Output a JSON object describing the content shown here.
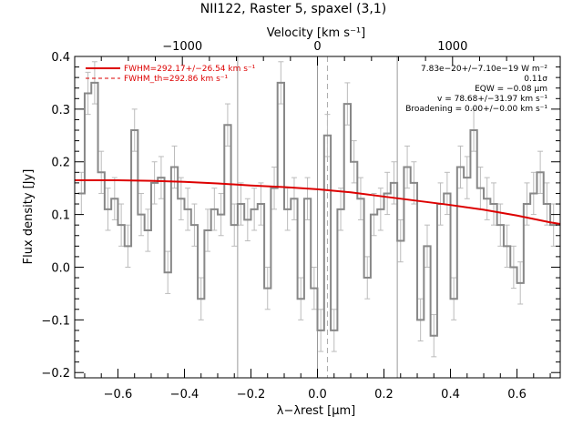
{
  "chart_data": {
    "type": "line",
    "title": "NII122, Raster 5, spaxel (3,1)",
    "xlabel": "λ−λrest [μm]",
    "ylabel": "Flux density [Jy]",
    "top_xlabel": "Velocity [km s⁻¹]",
    "xlim": [
      -0.73,
      0.73
    ],
    "ylim": [
      -0.21,
      0.4
    ],
    "top_xlim": [
      -1797,
      1797
    ],
    "grid": false,
    "x_ticks": [
      -0.6,
      -0.4,
      -0.2,
      0.0,
      0.2,
      0.4,
      0.6
    ],
    "x_tick_labels": [
      "−0.6",
      "−0.4",
      "−0.2",
      "0.0",
      "0.2",
      "0.4",
      "0.6"
    ],
    "y_ticks": [
      -0.2,
      -0.1,
      0.0,
      0.1,
      0.2,
      0.3,
      0.4
    ],
    "y_tick_labels": [
      "−0.2",
      "−0.1",
      "0.0",
      "0.1",
      "0.2",
      "0.3",
      "0.4"
    ],
    "top_ticks": [
      -1000,
      0,
      1000
    ],
    "top_tick_labels": [
      "−1000",
      "0",
      "1000"
    ],
    "legend": {
      "placement": "top-left",
      "entries": [
        {
          "label": "FWHM=292.17+/−26.54 km s⁻¹",
          "style": "solid",
          "color": "#dd0000"
        },
        {
          "label": "FWHM_th=292.86 km s⁻¹",
          "style": "dashed",
          "color": "#dd0000"
        }
      ]
    },
    "annotations": [
      "7.83e−20+/−7.10e−19 W m⁻²",
      "0.11σ",
      "EQW = −0.08 μm",
      "v = 78.68+/−31.97 km s⁻¹",
      "Broadening = 0.00+/−0.00 km s⁻¹"
    ],
    "vlines_solid": [
      -0.24,
      0.0,
      0.24
    ],
    "vlines_dashed": [
      0.03
    ],
    "series": [
      {
        "name": "data",
        "style": "step",
        "color": "#888888",
        "x": [
          -0.71,
          -0.69,
          -0.67,
          -0.65,
          -0.63,
          -0.61,
          -0.59,
          -0.57,
          -0.55,
          -0.53,
          -0.51,
          -0.49,
          -0.47,
          -0.45,
          -0.43,
          -0.41,
          -0.39,
          -0.37,
          -0.35,
          -0.33,
          -0.31,
          -0.29,
          -0.27,
          -0.25,
          -0.23,
          -0.21,
          -0.19,
          -0.17,
          -0.15,
          -0.13,
          -0.11,
          -0.09,
          -0.07,
          -0.05,
          -0.03,
          -0.01,
          0.01,
          0.03,
          0.05,
          0.07,
          0.09,
          0.11,
          0.13,
          0.15,
          0.17,
          0.19,
          0.21,
          0.23,
          0.25,
          0.27,
          0.29,
          0.31,
          0.33,
          0.35,
          0.37,
          0.39,
          0.41,
          0.43,
          0.45,
          0.47,
          0.49,
          0.51,
          0.53,
          0.55,
          0.57,
          0.59,
          0.61,
          0.63,
          0.65,
          0.67,
          0.69,
          0.71
        ],
        "y": [
          0.14,
          0.33,
          0.35,
          0.18,
          0.11,
          0.13,
          0.08,
          0.04,
          0.26,
          0.1,
          0.07,
          0.16,
          0.17,
          -0.01,
          0.19,
          0.13,
          0.11,
          0.08,
          -0.06,
          0.07,
          0.11,
          0.1,
          0.27,
          0.08,
          0.12,
          0.09,
          0.11,
          0.12,
          -0.04,
          0.15,
          0.35,
          0.11,
          0.13,
          -0.06,
          0.13,
          -0.04,
          -0.12,
          0.25,
          -0.12,
          0.11,
          0.31,
          0.2,
          0.13,
          -0.02,
          0.1,
          0.11,
          0.14,
          0.16,
          0.05,
          0.19,
          0.16,
          -0.1,
          0.04,
          -0.13,
          0.12,
          0.14,
          -0.06,
          0.19,
          0.17,
          0.26,
          0.15,
          0.13,
          0.12,
          0.08,
          0.04,
          0.0,
          -0.03,
          0.12,
          0.14,
          0.18,
          0.12,
          0.08
        ],
        "error": 0.04
      },
      {
        "name": "fit",
        "style": "solid",
        "color": "#dd0000",
        "x": [
          -0.73,
          -0.6,
          -0.5,
          -0.4,
          -0.3,
          -0.2,
          -0.1,
          0.0,
          0.1,
          0.2,
          0.3,
          0.4,
          0.5,
          0.6,
          0.7,
          0.73
        ],
        "y": [
          0.165,
          0.165,
          0.164,
          0.162,
          0.159,
          0.155,
          0.152,
          0.148,
          0.142,
          0.134,
          0.126,
          0.118,
          0.109,
          0.098,
          0.085,
          0.082
        ]
      }
    ]
  }
}
